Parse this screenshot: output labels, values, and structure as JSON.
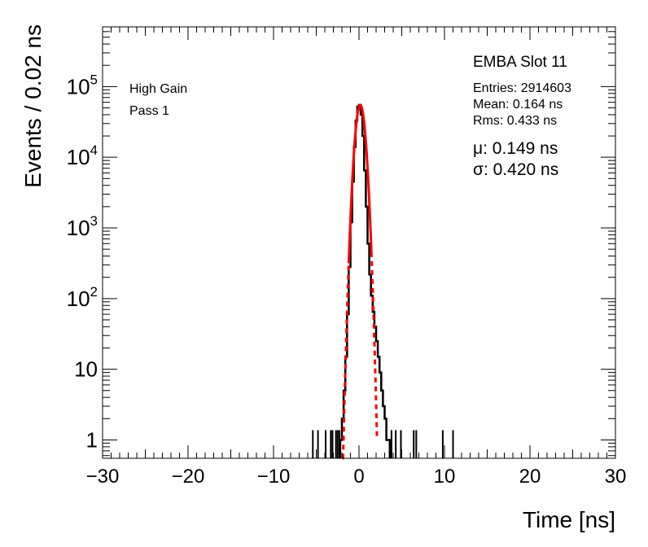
{
  "chart_data": {
    "type": "histogram",
    "title": "EMBA Slot 11",
    "xlabel": "Time [ns]",
    "ylabel": "Events / 0.02 ns",
    "xlim": [
      -30,
      30
    ],
    "ylim": [
      0.55,
      700000
    ],
    "yscale": "log",
    "x_ticks": [
      "−30",
      "−20",
      "−10",
      "0",
      "10",
      "20",
      "30"
    ],
    "y_ticks": [
      {
        "value": 1,
        "base": "1",
        "exp": ""
      },
      {
        "value": 10,
        "base": "10",
        "exp": ""
      },
      {
        "value": 100,
        "base": "10",
        "exp": "2"
      },
      {
        "value": 1000,
        "base": "10",
        "exp": "3"
      },
      {
        "value": 10000,
        "base": "10",
        "exp": "4"
      },
      {
        "value": 100000,
        "base": "10",
        "exp": "5"
      }
    ],
    "grid": false,
    "labels": {
      "gain": "High Gain",
      "pass": "Pass 1"
    },
    "stats": {
      "entries": "Entries: 2914603",
      "mean": "Mean: 0.164 ns",
      "rms": "Rms: 0.433 ns"
    },
    "fit_params": {
      "mu": "μ: 0.149 ns",
      "sigma": "σ: 0.420 ns"
    },
    "colors": {
      "histogram": "#000000",
      "fit": "#ff0000"
    },
    "fit": {
      "function": "gaussian",
      "amplitude": 55000,
      "mu": 0.149,
      "sigma": 0.42,
      "fit_range_solid": [
        -1.2,
        1.45
      ],
      "draw_range": [
        -1.9,
        2.1
      ]
    },
    "core_histogram": {
      "x": [
        -2.1,
        -1.9,
        -1.7,
        -1.5,
        -1.3,
        -1.1,
        -0.9,
        -0.7,
        -0.5,
        -0.3,
        -0.1,
        0.1,
        0.3,
        0.5,
        0.7,
        0.9,
        1.1,
        1.3,
        1.5,
        1.7,
        1.9,
        2.1,
        2.3,
        2.5,
        2.7,
        2.9,
        3.1,
        3.3,
        3.5
      ],
      "y": [
        1,
        2,
        5,
        15,
        60,
        280,
        1200,
        4500,
        14000,
        33000,
        52000,
        55000,
        40000,
        20000,
        6500,
        2000,
        600,
        220,
        110,
        65,
        40,
        25,
        15,
        9,
        5,
        3,
        2,
        1,
        1
      ]
    },
    "isolated_entries": {
      "x": [
        -5.4,
        -4.8,
        -3.9,
        -3.3,
        -3.1,
        -2.7,
        -2.5,
        -2.3,
        3.8,
        4.3,
        4.9,
        6.4,
        6.7,
        9.8,
        11.0
      ],
      "y": [
        1,
        1,
        1,
        1,
        1,
        1,
        1,
        1,
        1,
        1,
        1,
        1,
        1,
        1,
        1
      ]
    }
  }
}
